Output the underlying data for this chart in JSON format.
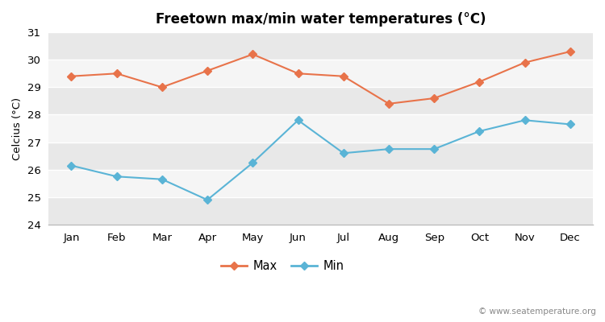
{
  "months": [
    "Jan",
    "Feb",
    "Mar",
    "Apr",
    "May",
    "Jun",
    "Jul",
    "Aug",
    "Sep",
    "Oct",
    "Nov",
    "Dec"
  ],
  "max_temps": [
    29.4,
    29.5,
    29.0,
    29.6,
    30.2,
    29.5,
    29.4,
    28.4,
    28.6,
    29.2,
    29.9,
    30.3
  ],
  "min_temps": [
    26.15,
    25.75,
    25.65,
    24.9,
    26.25,
    27.8,
    26.6,
    26.75,
    26.75,
    27.4,
    27.8,
    27.65
  ],
  "max_color": "#e8734a",
  "min_color": "#5ab4d6",
  "title": "Freetown max/min water temperatures (°C)",
  "ylabel": "Celcius (°C)",
  "ylim": [
    24,
    31
  ],
  "yticks": [
    24,
    25,
    26,
    27,
    28,
    29,
    30,
    31
  ],
  "fig_bg_color": "#ffffff",
  "band_colors": [
    "#e8e8e8",
    "#f5f5f5"
  ],
  "watermark": "© www.seatemperature.org",
  "legend_max": "Max",
  "legend_min": "Min"
}
